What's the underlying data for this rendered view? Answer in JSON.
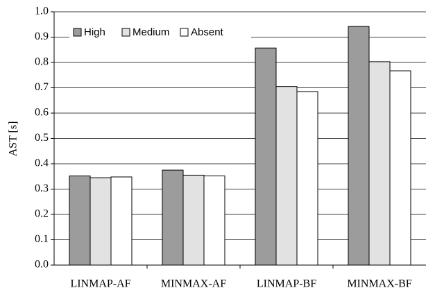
{
  "chart_data": {
    "type": "bar",
    "y_label": "AST [s]",
    "categories": [
      "LINMAP-AF",
      "MINMAX-AF",
      "LINMAP-BF",
      "MINMAX-BF"
    ],
    "series": [
      {
        "name": "High",
        "color": "#9c9c9c",
        "values": [
          0.352,
          0.375,
          0.857,
          0.942
        ]
      },
      {
        "name": "Medium",
        "color": "#e2e2e2",
        "values": [
          0.345,
          0.355,
          0.705,
          0.803
        ]
      },
      {
        "name": "Absent",
        "color": "#ffffff",
        "values": [
          0.348,
          0.352,
          0.685,
          0.767
        ]
      }
    ],
    "ylim": [
      0,
      1
    ],
    "yticks": [
      {
        "value": 0,
        "label": "0.0"
      },
      0.1,
      0.2,
      0.3,
      0.4,
      0.5,
      0.6,
      0.7,
      0.8,
      0.9,
      {
        "value": 1,
        "label": "1.0"
      }
    ],
    "grid": true,
    "legend": "top-left"
  }
}
